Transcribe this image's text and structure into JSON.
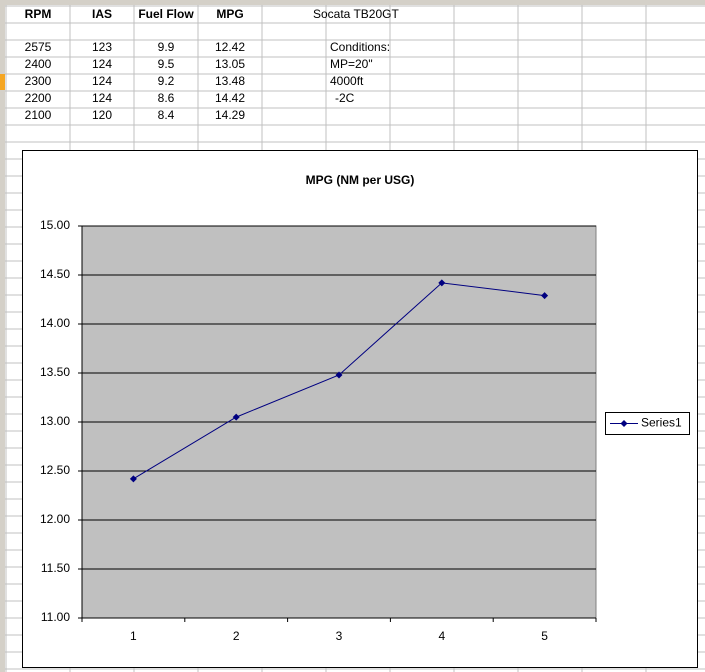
{
  "sheet": {
    "header": [
      "RPM",
      "IAS",
      "Fuel Flow",
      "MPG"
    ],
    "rows": [
      [
        2575,
        123,
        9.9,
        12.42
      ],
      [
        2400,
        124,
        9.5,
        13.05
      ],
      [
        2300,
        124,
        9.2,
        13.48
      ],
      [
        2200,
        124,
        8.6,
        14.42
      ],
      [
        2100,
        120,
        8.4,
        14.29
      ]
    ],
    "aircraft": "Socata TB20GT",
    "notes": [
      "Conditions:",
      "MP=20\"",
      "4000ft",
      "-2C"
    ]
  },
  "chart_data": {
    "type": "line",
    "title": "MPG (NM per USG)",
    "categories": [
      "1",
      "2",
      "3",
      "4",
      "5"
    ],
    "series": [
      {
        "name": "Series1",
        "color": "#000080",
        "values": [
          12.42,
          13.05,
          13.48,
          14.42,
          14.29
        ]
      }
    ],
    "ylim": [
      11,
      15
    ],
    "yticks": [
      {
        "value": 11,
        "label": "11.00"
      },
      {
        "value": 11.5,
        "label": "11.50"
      },
      {
        "value": 12,
        "label": "12.00"
      },
      {
        "value": 12.5,
        "label": "12.50"
      },
      {
        "value": 13,
        "label": "13.00"
      },
      {
        "value": 13.5,
        "label": "13.50"
      },
      {
        "value": 14,
        "label": "14.00"
      },
      {
        "value": 14.5,
        "label": "14.50"
      },
      {
        "value": 15,
        "label": "15.00"
      }
    ],
    "grid": true,
    "legend": "right",
    "plot_background": "#c0c0c0"
  }
}
